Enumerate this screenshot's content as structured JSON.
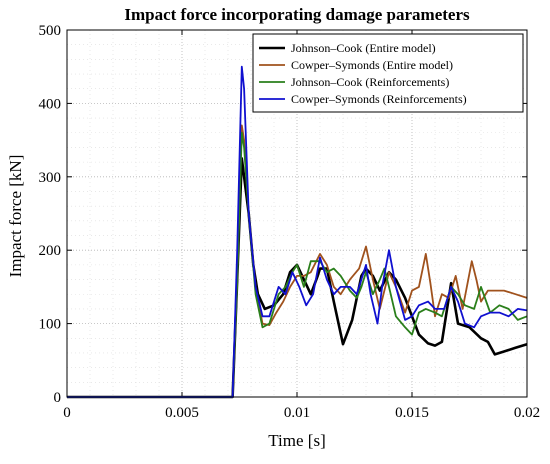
{
  "chart_data": {
    "type": "line",
    "title": "Impact force incorporating damage parameters",
    "xlabel": "Time [s]",
    "ylabel": "Impact force [kN]",
    "xlim": [
      0,
      0.02
    ],
    "ylim": [
      0,
      500
    ],
    "x_ticks": [
      0,
      0.005,
      0.01,
      0.015,
      0.02
    ],
    "x_tick_labels": [
      "0",
      "0.005",
      "0.01",
      "0.015",
      "0.02"
    ],
    "y_ticks": [
      0,
      100,
      200,
      300,
      400,
      500
    ],
    "y_tick_labels": [
      "0",
      "100",
      "200",
      "300",
      "400",
      "500"
    ],
    "grid": true,
    "legend_position": "top-right",
    "series": [
      {
        "name": "Johnson–Cook (Entire model)",
        "color": "#000000",
        "points": [
          [
            0,
            0
          ],
          [
            0.0072,
            0
          ],
          [
            0.0074,
            160
          ],
          [
            0.0076,
            325
          ],
          [
            0.0077,
            300
          ],
          [
            0.0079,
            250
          ],
          [
            0.0081,
            180
          ],
          [
            0.0083,
            140
          ],
          [
            0.0086,
            120
          ],
          [
            0.009,
            125
          ],
          [
            0.0094,
            140
          ],
          [
            0.0097,
            170
          ],
          [
            0.01,
            180
          ],
          [
            0.0103,
            160
          ],
          [
            0.0106,
            140
          ],
          [
            0.0109,
            165
          ],
          [
            0.011,
            175
          ],
          [
            0.0113,
            175
          ],
          [
            0.0116,
            130
          ],
          [
            0.012,
            72
          ],
          [
            0.0124,
            105
          ],
          [
            0.0128,
            165
          ],
          [
            0.013,
            175
          ],
          [
            0.0133,
            165
          ],
          [
            0.0136,
            145
          ],
          [
            0.014,
            170
          ],
          [
            0.0143,
            160
          ],
          [
            0.0147,
            135
          ],
          [
            0.015,
            110
          ],
          [
            0.0153,
            85
          ],
          [
            0.0157,
            73
          ],
          [
            0.016,
            70
          ],
          [
            0.0163,
            75
          ],
          [
            0.0167,
            155
          ],
          [
            0.017,
            100
          ],
          [
            0.0175,
            95
          ],
          [
            0.018,
            80
          ],
          [
            0.0183,
            75
          ],
          [
            0.0186,
            58
          ],
          [
            0.019,
            62
          ],
          [
            0.0195,
            67
          ],
          [
            0.02,
            72
          ]
        ]
      },
      {
        "name": "Cowper–Symonds (Entire model)",
        "color": "#a0521d",
        "points": [
          [
            0,
            0
          ],
          [
            0.0072,
            0
          ],
          [
            0.0074,
            160
          ],
          [
            0.0076,
            370
          ],
          [
            0.0077,
            350
          ],
          [
            0.0079,
            250
          ],
          [
            0.0082,
            150
          ],
          [
            0.0085,
            100
          ],
          [
            0.0088,
            98
          ],
          [
            0.0091,
            115
          ],
          [
            0.0094,
            130
          ],
          [
            0.0097,
            150
          ],
          [
            0.01,
            165
          ],
          [
            0.0103,
            165
          ],
          [
            0.0106,
            170
          ],
          [
            0.011,
            195
          ],
          [
            0.0113,
            180
          ],
          [
            0.0116,
            150
          ],
          [
            0.0119,
            140
          ],
          [
            0.0123,
            160
          ],
          [
            0.0127,
            175
          ],
          [
            0.013,
            205
          ],
          [
            0.0133,
            160
          ],
          [
            0.0136,
            120
          ],
          [
            0.014,
            170
          ],
          [
            0.0143,
            150
          ],
          [
            0.0147,
            115
          ],
          [
            0.015,
            145
          ],
          [
            0.0153,
            150
          ],
          [
            0.0156,
            195
          ],
          [
            0.0158,
            155
          ],
          [
            0.016,
            110
          ],
          [
            0.0163,
            140
          ],
          [
            0.0166,
            135
          ],
          [
            0.0169,
            165
          ],
          [
            0.0172,
            120
          ],
          [
            0.0176,
            185
          ],
          [
            0.0178,
            160
          ],
          [
            0.018,
            130
          ],
          [
            0.0183,
            145
          ],
          [
            0.0187,
            145
          ],
          [
            0.019,
            145
          ],
          [
            0.0195,
            140
          ],
          [
            0.02,
            135
          ]
        ]
      },
      {
        "name": "Johnson–Cook (Reinforcements)",
        "color": "#2a7f1b",
        "points": [
          [
            0,
            0
          ],
          [
            0.0072,
            0
          ],
          [
            0.0074,
            160
          ],
          [
            0.0076,
            360
          ],
          [
            0.0077,
            340
          ],
          [
            0.0079,
            250
          ],
          [
            0.0082,
            140
          ],
          [
            0.0085,
            95
          ],
          [
            0.0088,
            100
          ],
          [
            0.0092,
            140
          ],
          [
            0.0095,
            150
          ],
          [
            0.0098,
            170
          ],
          [
            0.01,
            180
          ],
          [
            0.0103,
            150
          ],
          [
            0.0106,
            185
          ],
          [
            0.011,
            185
          ],
          [
            0.0113,
            170
          ],
          [
            0.0116,
            175
          ],
          [
            0.0119,
            165
          ],
          [
            0.0123,
            145
          ],
          [
            0.0126,
            135
          ],
          [
            0.0128,
            150
          ],
          [
            0.013,
            170
          ],
          [
            0.0133,
            140
          ],
          [
            0.0136,
            160
          ],
          [
            0.0138,
            175
          ],
          [
            0.014,
            150
          ],
          [
            0.0143,
            110
          ],
          [
            0.0147,
            95
          ],
          [
            0.015,
            85
          ],
          [
            0.0153,
            115
          ],
          [
            0.0156,
            120
          ],
          [
            0.016,
            115
          ],
          [
            0.0163,
            110
          ],
          [
            0.0167,
            150
          ],
          [
            0.017,
            140
          ],
          [
            0.0173,
            125
          ],
          [
            0.0177,
            120
          ],
          [
            0.018,
            150
          ],
          [
            0.0184,
            115
          ],
          [
            0.0188,
            125
          ],
          [
            0.0192,
            120
          ],
          [
            0.0196,
            105
          ],
          [
            0.02,
            110
          ]
        ]
      },
      {
        "name": "Cowper–Symonds (Reinforcements)",
        "color": "#1010d0",
        "points": [
          [
            0,
            0
          ],
          [
            0.0072,
            0
          ],
          [
            0.0074,
            200
          ],
          [
            0.0076,
            450
          ],
          [
            0.0077,
            420
          ],
          [
            0.0079,
            250
          ],
          [
            0.0082,
            150
          ],
          [
            0.0085,
            110
          ],
          [
            0.0088,
            110
          ],
          [
            0.0092,
            150
          ],
          [
            0.0095,
            140
          ],
          [
            0.0098,
            170
          ],
          [
            0.0101,
            150
          ],
          [
            0.0104,
            125
          ],
          [
            0.0107,
            140
          ],
          [
            0.011,
            190
          ],
          [
            0.0113,
            160
          ],
          [
            0.0116,
            140
          ],
          [
            0.0119,
            150
          ],
          [
            0.0123,
            150
          ],
          [
            0.0126,
            140
          ],
          [
            0.013,
            180
          ],
          [
            0.0132,
            140
          ],
          [
            0.0135,
            100
          ],
          [
            0.0137,
            150
          ],
          [
            0.014,
            200
          ],
          [
            0.0143,
            150
          ],
          [
            0.0147,
            105
          ],
          [
            0.015,
            110
          ],
          [
            0.0153,
            125
          ],
          [
            0.0157,
            130
          ],
          [
            0.016,
            120
          ],
          [
            0.0164,
            120
          ],
          [
            0.0167,
            150
          ],
          [
            0.017,
            130
          ],
          [
            0.0173,
            100
          ],
          [
            0.0177,
            95
          ],
          [
            0.018,
            110
          ],
          [
            0.0184,
            115
          ],
          [
            0.0188,
            115
          ],
          [
            0.0192,
            110
          ],
          [
            0.0196,
            120
          ],
          [
            0.02,
            118
          ]
        ]
      }
    ]
  }
}
